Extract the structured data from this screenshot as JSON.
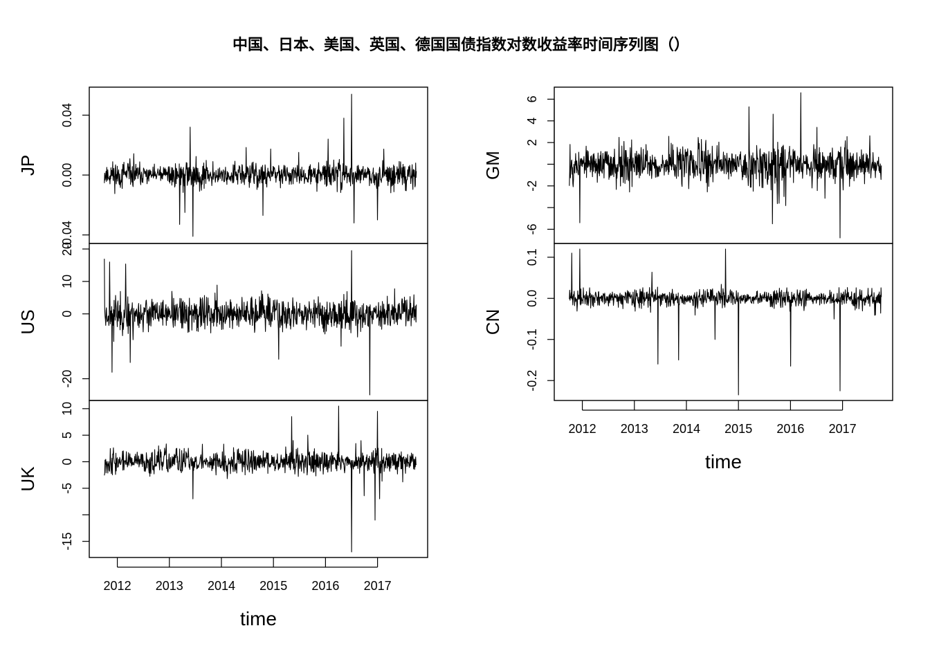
{
  "title": "中国、日本、美国、英国、德国国债指数对数收益率时间序列图（）",
  "chart_data": [
    {
      "type": "line",
      "series_label": "JP",
      "xlabel": "",
      "x_range": [
        2011.7,
        2017.75
      ],
      "ylim": [
        -0.042,
        0.055
      ],
      "y_ticks": [
        -0.04,
        0.0,
        0.04
      ],
      "y_tick_labels": [
        "-0.04",
        "0.00",
        "0.04"
      ],
      "x_ticks": [],
      "x_tick_labels": [],
      "baseline_amplitude": 0.007,
      "spikes": [
        [
          2013.2,
          -0.033
        ],
        [
          2013.3,
          -0.025
        ],
        [
          2013.4,
          0.032
        ],
        [
          2013.45,
          -0.041
        ],
        [
          2014.8,
          -0.027
        ],
        [
          2016.05,
          0.024
        ],
        [
          2016.35,
          0.038
        ],
        [
          2016.5,
          0.054
        ],
        [
          2016.55,
          -0.032
        ],
        [
          2017.0,
          -0.03
        ]
      ]
    },
    {
      "type": "line",
      "series_label": "US",
      "xlabel": "",
      "x_range": [
        2011.7,
        2017.75
      ],
      "ylim": [
        -25,
        20
      ],
      "y_ticks": [
        -20,
        0,
        10,
        20
      ],
      "y_tick_labels": [
        "-20",
        "0",
        "10",
        "20"
      ],
      "x_ticks": [],
      "x_tick_labels": [],
      "baseline_amplitude": 4.5,
      "spikes": [
        [
          2011.75,
          17
        ],
        [
          2011.85,
          16
        ],
        [
          2011.9,
          -18
        ],
        [
          2012.25,
          -15
        ],
        [
          2015.1,
          -14
        ],
        [
          2016.5,
          19.5
        ],
        [
          2016.85,
          -25
        ]
      ]
    },
    {
      "type": "line",
      "series_label": "UK",
      "xlabel": "time",
      "x_range": [
        2011.7,
        2017.75
      ],
      "ylim": [
        -17,
        10.5
      ],
      "y_ticks": [
        -15,
        -10,
        -5,
        0,
        5,
        10
      ],
      "y_tick_labels": [
        "-15",
        "",
        "-5",
        "0",
        "5",
        "10"
      ],
      "x_ticks": [
        2012,
        2013,
        2014,
        2015,
        2016,
        2017
      ],
      "x_tick_labels": [
        "2012",
        "2013",
        "2014",
        "2015",
        "2016",
        "2017"
      ],
      "baseline_amplitude": 2.0,
      "spikes": [
        [
          2013.45,
          -7
        ],
        [
          2015.35,
          8.5
        ],
        [
          2016.25,
          10.5
        ],
        [
          2016.5,
          -17
        ],
        [
          2016.95,
          -11
        ],
        [
          2017.0,
          9.5
        ]
      ]
    },
    {
      "type": "line",
      "series_label": "GM",
      "xlabel": "",
      "x_range": [
        2011.7,
        2017.75
      ],
      "ylim": [
        -6.8,
        6.6
      ],
      "y_ticks": [
        -6,
        -4,
        -2,
        0,
        2,
        4,
        6
      ],
      "y_tick_labels": [
        "-6",
        "",
        "-2",
        "",
        "2",
        "4",
        "6"
      ],
      "x_ticks": [],
      "x_tick_labels": [],
      "baseline_amplitude": 1.6,
      "spikes": [
        [
          2011.95,
          -5.4
        ],
        [
          2015.2,
          5.3
        ],
        [
          2015.65,
          -5.5
        ],
        [
          2016.2,
          6.6
        ],
        [
          2016.95,
          -6.8
        ]
      ]
    },
    {
      "type": "line",
      "series_label": "CN",
      "xlabel": "time",
      "x_range": [
        2011.7,
        2017.75
      ],
      "ylim": [
        -0.235,
        0.12
      ],
      "y_ticks": [
        -0.2,
        -0.1,
        0.0,
        0.1
      ],
      "y_tick_labels": [
        "-0.2",
        "-0.1",
        "0.0",
        "0.1"
      ],
      "x_ticks": [
        2012,
        2013,
        2014,
        2015,
        2016,
        2017
      ],
      "x_tick_labels": [
        "2012",
        "2013",
        "2014",
        "2015",
        "2016",
        "2017"
      ],
      "baseline_amplitude": 0.018,
      "spikes": [
        [
          2011.8,
          0.11
        ],
        [
          2011.95,
          0.12
        ],
        [
          2013.45,
          -0.16
        ],
        [
          2013.85,
          -0.15
        ],
        [
          2014.55,
          -0.1
        ],
        [
          2014.75,
          0.12
        ],
        [
          2015.0,
          -0.235
        ],
        [
          2016.0,
          -0.165
        ],
        [
          2016.95,
          -0.225
        ]
      ]
    }
  ]
}
